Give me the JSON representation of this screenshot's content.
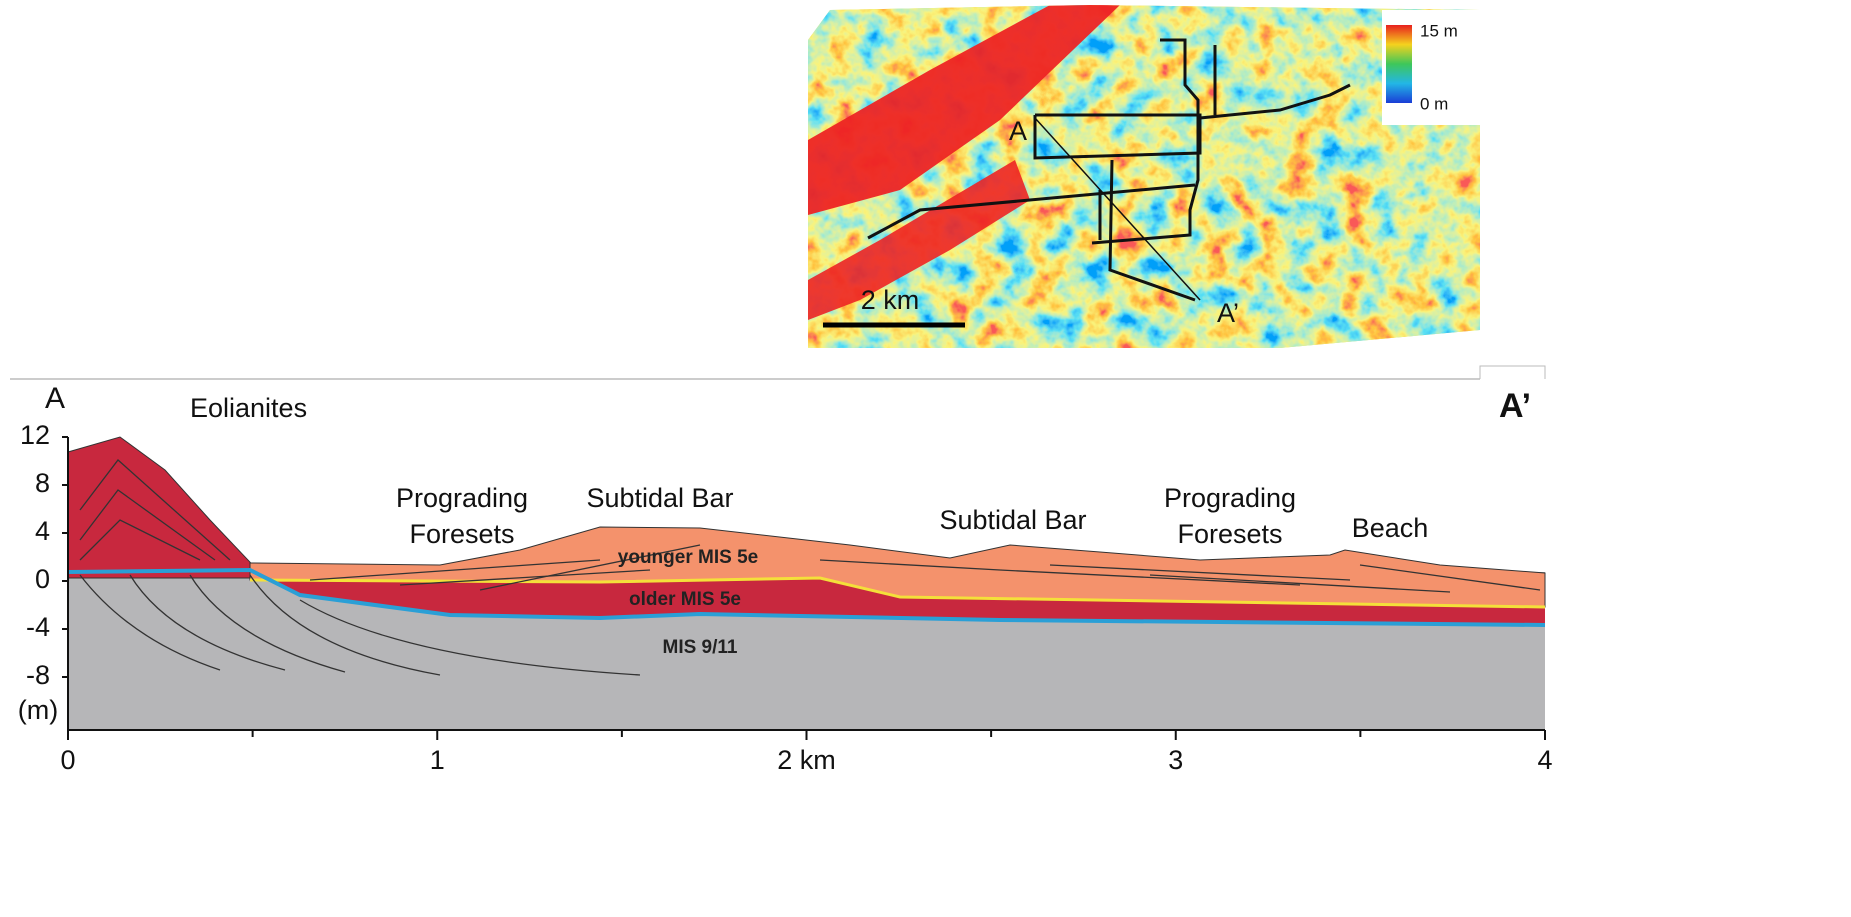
{
  "map": {
    "point_a": "A",
    "point_a_prime": "A’",
    "scale_bar": "2 km",
    "colorbar_max": "15 m",
    "colorbar_min": "0 m"
  },
  "section": {
    "start_label": "A",
    "end_label": "A’",
    "y_unit": "(m)",
    "y_ticks": [
      "12",
      "8",
      "4",
      "0",
      "-4",
      "-8"
    ],
    "x_ticks": [
      "0",
      "1",
      "2 km",
      "3",
      "4"
    ],
    "labels": [
      "Eolianites",
      "Prograding Foresets",
      "Subtidal Bar",
      "younger MIS 5e",
      "older MIS 5e",
      "MIS 9/11",
      "Subtidal Bar",
      "Prograding Foresets",
      "Beach"
    ]
  }
}
